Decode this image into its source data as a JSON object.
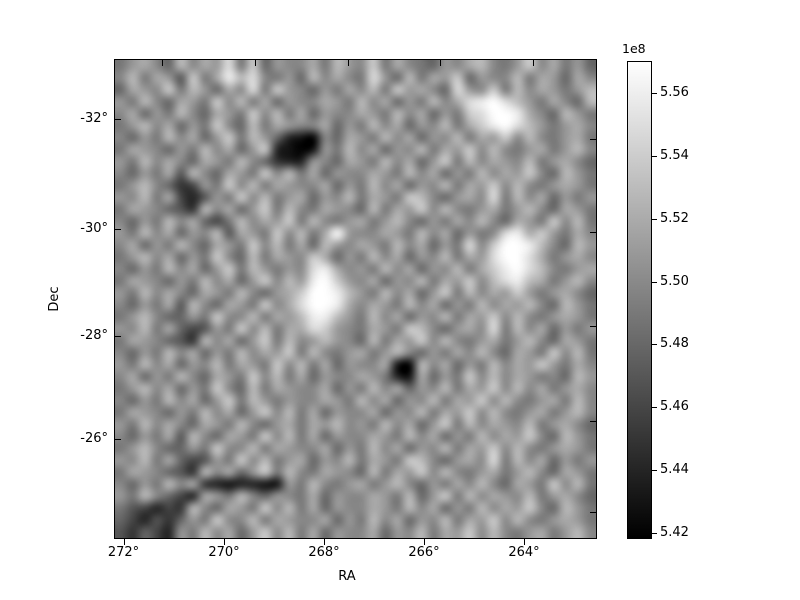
{
  "figure": {
    "background": "#ffffff",
    "frame_color": "#000000",
    "text_color": "#000000"
  },
  "chart_data": {
    "type": "heatmap",
    "title": "",
    "xlabel": "RA",
    "ylabel": "Dec",
    "x_tick_labels": [
      "272°",
      "270°",
      "268°",
      "266°",
      "264°"
    ],
    "y_tick_labels": [
      "-32°",
      "-30°",
      "-28°",
      "-26°"
    ],
    "x_axis_direction": "RA decreases left to right",
    "axes_hint": {
      "x_range_deg": [
        272.2,
        262.3
      ],
      "y_range_deg": [
        -33.1,
        -24.3
      ],
      "top_ticks_offset": "top-edge RA ticks shifted right vs bottom (curved sky/WCS grid)",
      "grid": "off",
      "legend": "none"
    },
    "colorbar": {
      "offset_label": "1e8",
      "tick_labels": [
        "5.56",
        "5.54",
        "5.52",
        "5.50",
        "5.48",
        "5.46",
        "5.44",
        "5.42"
      ],
      "vmin": 5.418,
      "vmax": 5.57,
      "unit_scale": 100000000.0,
      "cmap": "gray",
      "top_color": "#ffffff",
      "bottom_color": "#000000"
    },
    "grid_values": {
      "cols": 40,
      "rows": 40,
      "encoding": "each hex char v in 0..15 maps to value = vmin + (v/15)*(vmax-vmin), rendered with bilinear smoothing",
      "rows_hex": [
        "79a86b8a9d7c6988a7b98c7a87698ab879c8a796",
        "8b7a95c7aebd8796b8a87d96b7a9c6988b7a96a8",
        "6a98c7b96a8d7c98697a8b7c9a86d98c7b8a979b",
        "97b86a97c8b7a6988a97b8a697b8adefdb97a86b",
        "8a697b86a97c8b7a6988a97b8a697cdffea86b97",
        "79b8a697c86b7a988a697b8a698b7acefdb979a8",
        "8697b8a69c7b9621086a97b8a698b7a9c8b879a7",
        "7a98697b8a69c210197b8a698b7a9c8b879a79b8",
        "97b8a86a97b86322986a97b8a69c7b8a98b79a86",
        "8697a5b86a97c8b7a6988a97b8a697b8a9c86b97",
        "79b863497c8b7a988a697b8a698b7a9c8b879a97",
        "98b7a42597c8b79a698b7a97cb869a8d7b8a6979",
        "7a98653b8a69c7b87a986b7a9c8b879a79b86a97",
        "8697b8a647b8a9c7b879a79b8697a8b86a97c8b7",
        "97b8a698b5a97c8b7af988a97b8a6978deac97a8",
        "8a697b86a97c8b7a6b98a97b8a697d8cffeb86b9",
        "79b8a697c86b7a98ca697b8a698b7a9dffda79a8",
        "8697b8a69c7b9798dea897b8a698b7acefdb879a",
        "7a98697b8a69c8b9efc98a698b7a9c8bdeba79b8",
        "97b8a86a97b869acffeb97b8a69c7b8a9c979a86",
        "8697a5b86a97c8adffea8a97b8a697b8a9b86b97",
        "79b86697c88b7a9beeb97b8a698b7a9c8b879a97",
        "98b7a64597c8b7aadc987a97cb869a8d7b8a6979",
        "7a98653b8a69c7b89b986b7a9c8b879a79b86a97",
        "8697b8a697b8a9c7b879a79b8697a8b86a97c8b7",
        "97b8a698b7a97c8b7a6988a10b8a697b8a9c97a8",
        "8a697b86a97c8b7a6988a9721a697c8b8a9786b9",
        "79b8a697c86b7a988a697b8a698b7a9c8b8a79a8",
        "8697b8a69c7b97988a97b8a698b7a9c8b879a7b8",
        "7a98697b8a69c8b7a6988a698b7a9c8b879a79b8",
        "97b8a86a97b869a7a9b897b8a69c7b8a98b79a86",
        "8697a5b86a97c8b7a6988a97b8a697b8a9c86b97",
        "79b86697c88b7a988a697b8a698b7a9c8b879a97",
        "98b7a64597c8b79a698b7a97cb869a8d7b8a6979",
        "7a98653b8a69c7b87a986b7a9c8b879a79b86a97",
        "8697b8a321221197b879a79b8697a8b86a97c8b7",
        "97b8642a97b86987a6988a97b69c7b8a98b79a86",
        "754243b86a97c8b7a6988a97b8a697b8a9c86b97",
        "64253697c88b7a988a697b8a698b7a9c8b879a97",
        "5364297b8a69c8b7a6988a698b7a9c8b879a79b8"
      ]
    }
  }
}
